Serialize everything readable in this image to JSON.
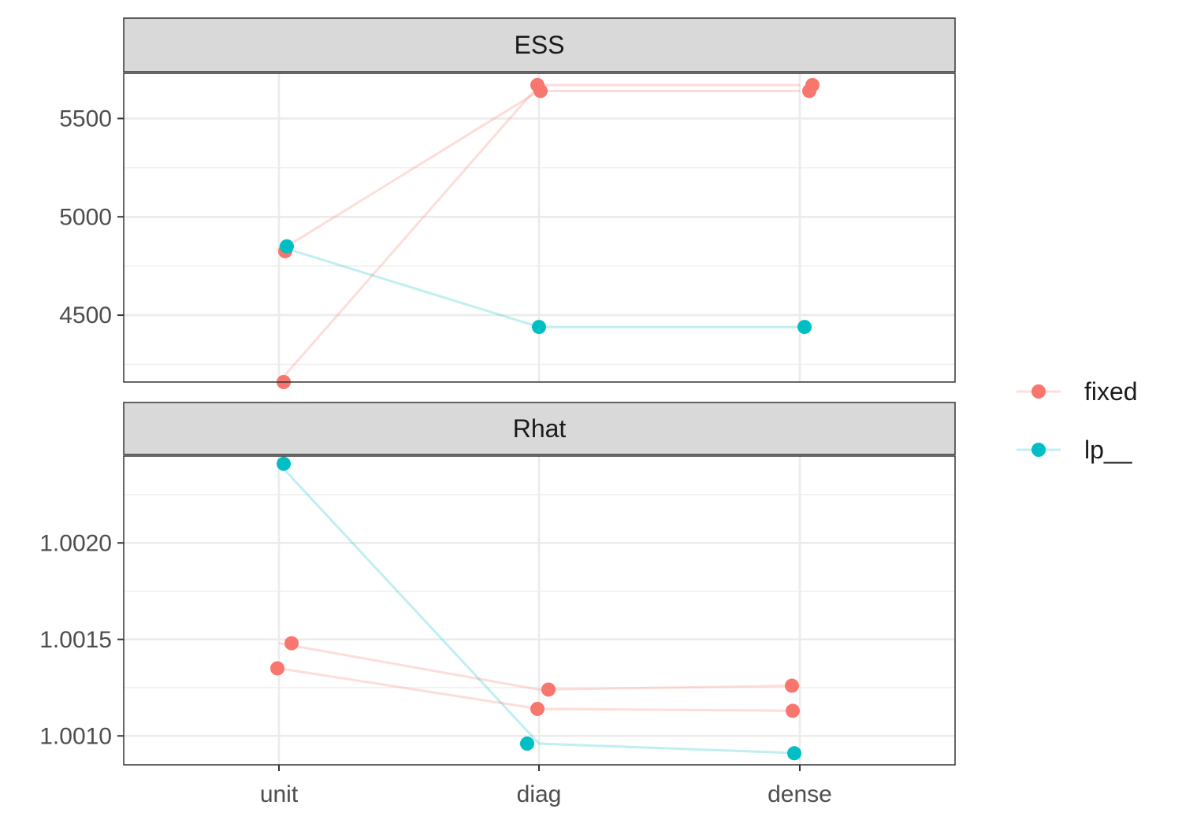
{
  "chart_data": {
    "type": "scatter",
    "categories": [
      "unit",
      "diag",
      "dense"
    ],
    "colors": {
      "fixed": "#F8766D",
      "lp__": "#00BFC4"
    },
    "legend": {
      "position": "right",
      "entries": [
        "fixed",
        "lp__"
      ]
    },
    "grid": true,
    "panels": [
      {
        "title": "ESS",
        "ylim": [
          4160,
          5730
        ],
        "yticks": [
          4500,
          5000,
          5500
        ],
        "ytick_labels": [
          "4500",
          "5000",
          "5500"
        ],
        "series": [
          {
            "name": "fixed",
            "group": 1,
            "points": [
              {
                "x": "unit",
                "y": 4825
              },
              {
                "x": "diag",
                "y": 5640
              },
              {
                "x": "dense",
                "y": 5640
              }
            ]
          },
          {
            "name": "fixed",
            "group": 2,
            "points": [
              {
                "x": "unit",
                "y": 4160
              },
              {
                "x": "diag",
                "y": 5670
              },
              {
                "x": "dense",
                "y": 5670
              }
            ]
          },
          {
            "name": "lp__",
            "group": 1,
            "points": [
              {
                "x": "unit",
                "y": 4850
              },
              {
                "x": "diag",
                "y": 4440
              },
              {
                "x": "dense",
                "y": 4440
              }
            ]
          }
        ]
      },
      {
        "title": "Rhat",
        "ylim": [
          1.00085,
          1.00245
        ],
        "yticks": [
          1.001,
          1.0015,
          1.002
        ],
        "ytick_labels": [
          "1.0010",
          "1.0015",
          "1.0020"
        ],
        "series": [
          {
            "name": "fixed",
            "group": 1,
            "points": [
              {
                "x": "unit",
                "y": 1.00148
              },
              {
                "x": "diag",
                "y": 1.00124
              },
              {
                "x": "dense",
                "y": 1.00126
              }
            ]
          },
          {
            "name": "fixed",
            "group": 2,
            "points": [
              {
                "x": "unit",
                "y": 1.00135
              },
              {
                "x": "diag",
                "y": 1.00114
              },
              {
                "x": "dense",
                "y": 1.00113
              }
            ]
          },
          {
            "name": "lp__",
            "group": 1,
            "points": [
              {
                "x": "unit",
                "y": 1.00241
              },
              {
                "x": "diag",
                "y": 1.00096
              },
              {
                "x": "dense",
                "y": 1.00091
              }
            ]
          }
        ]
      }
    ]
  }
}
